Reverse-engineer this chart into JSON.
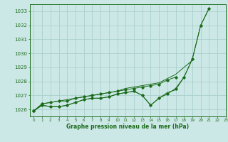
{
  "title": "Graphe pression niveau de la mer (hPa)",
  "bg_color": "#cce8e6",
  "grid_color": "#aacfcc",
  "line_color": "#1a6b1a",
  "xlim": [
    -0.5,
    23
  ],
  "ylim": [
    1025.5,
    1033.5
  ],
  "yticks": [
    1026,
    1027,
    1028,
    1029,
    1030,
    1031,
    1032,
    1033
  ],
  "xticks": [
    0,
    1,
    2,
    3,
    4,
    5,
    6,
    7,
    8,
    9,
    10,
    11,
    12,
    13,
    14,
    15,
    16,
    17,
    18,
    19,
    20,
    21,
    22,
    23
  ],
  "series": [
    {
      "x": [
        0,
        1,
        2,
        3,
        4,
        5,
        6,
        7,
        8,
        9,
        10,
        11,
        12,
        13,
        14,
        15,
        16,
        17,
        18,
        19,
        20,
        21,
        22,
        23
      ],
      "y": [
        1025.9,
        1026.3,
        1026.2,
        1026.2,
        1026.3,
        1026.5,
        1026.7,
        1026.8,
        1026.8,
        1026.9,
        1027.1,
        1027.2,
        1027.3,
        1027.0,
        1026.3,
        1026.8,
        1027.1,
        1027.5,
        1028.3,
        1029.6,
        1032.0,
        1033.2,
        null,
        null
      ],
      "marker": true
    },
    {
      "x": [
        0,
        1,
        2,
        3,
        4,
        5,
        6,
        7,
        8,
        9,
        10,
        11,
        12,
        13,
        14,
        15,
        16,
        17,
        18,
        19,
        20,
        21,
        22,
        23
      ],
      "y": [
        1025.9,
        1026.3,
        1026.2,
        1026.2,
        1026.3,
        1026.5,
        1026.7,
        1026.8,
        1026.8,
        1026.9,
        1027.1,
        1027.2,
        1027.3,
        1027.0,
        1026.3,
        1026.8,
        1027.2,
        1027.4,
        1028.3,
        1029.6,
        1032.0,
        1033.2,
        null,
        null
      ],
      "marker": false
    },
    {
      "x": [
        0,
        1,
        2,
        3,
        4,
        5,
        6,
        7,
        8,
        9,
        10,
        11,
        12,
        13,
        14,
        15,
        16,
        17,
        18,
        19,
        20,
        21,
        22,
        23
      ],
      "y": [
        1025.9,
        1026.4,
        1026.5,
        1026.6,
        1026.7,
        1026.8,
        1026.9,
        1027.0,
        1027.1,
        1027.2,
        1027.3,
        1027.5,
        1027.6,
        1027.7,
        1027.8,
        1027.9,
        1028.2,
        1028.5,
        1029.0,
        1029.5,
        null,
        null,
        null,
        null
      ],
      "marker": false
    },
    {
      "x": [
        0,
        1,
        2,
        3,
        4,
        5,
        6,
        7,
        8,
        9,
        10,
        11,
        12,
        13,
        14,
        15,
        16,
        17,
        18,
        19,
        20,
        21,
        22,
        23
      ],
      "y": [
        1025.9,
        1026.4,
        1026.5,
        1026.6,
        1026.6,
        1026.8,
        1026.9,
        1027.0,
        1027.1,
        1027.2,
        1027.3,
        1027.4,
        1027.5,
        1027.6,
        1027.7,
        1027.8,
        1028.1,
        1028.3,
        null,
        null,
        null,
        null,
        null,
        null
      ],
      "marker": true
    }
  ]
}
